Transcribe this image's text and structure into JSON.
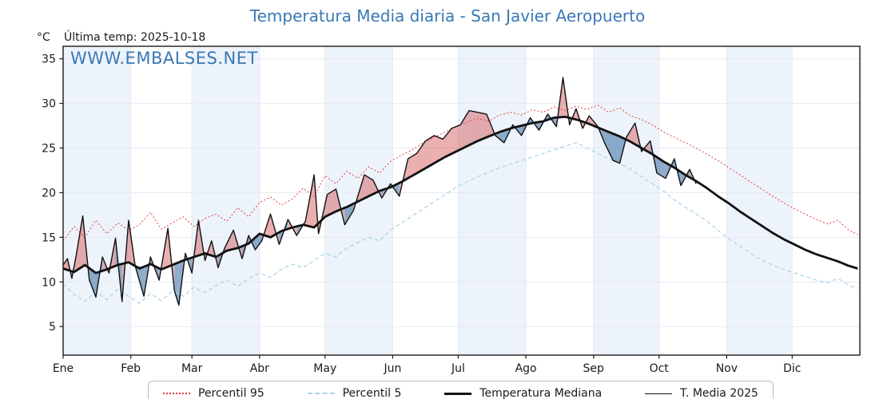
{
  "chart_data": {
    "type": "line",
    "title": "Temperatura Media diaria - San Javier Aeropuerto",
    "subtitle": "Última temp: 2025-10-18",
    "watermark": "WWW.EMBALSES.NET",
    "y_unit": "°C",
    "ylim": [
      1.8,
      36.4
    ],
    "y_ticks": [
      5,
      10,
      15,
      20,
      25,
      30,
      35
    ],
    "x_days": 365,
    "x_months": [
      {
        "label": "Ene",
        "start": 0
      },
      {
        "label": "Feb",
        "start": 31
      },
      {
        "label": "Mar",
        "start": 59
      },
      {
        "label": "Abr",
        "start": 90
      },
      {
        "label": "May",
        "start": 120
      },
      {
        "label": "Jun",
        "start": 151
      },
      {
        "label": "Jul",
        "start": 181
      },
      {
        "label": "Ago",
        "start": 212
      },
      {
        "label": "Sep",
        "start": 243
      },
      {
        "label": "Oct",
        "start": 273
      },
      {
        "label": "Nov",
        "start": 304
      },
      {
        "label": "Dic",
        "start": 334
      }
    ],
    "grid": true,
    "legend_position": "bottom",
    "colors": {
      "band": "#edf3fa",
      "grid": "#e7e9f0",
      "axis": "#1a1a1a",
      "title": "#3a78b5",
      "watermark": "#3a78b5"
    },
    "days_grid": [
      0,
      5,
      10,
      15,
      20,
      25,
      30,
      35,
      40,
      45,
      50,
      55,
      60,
      65,
      70,
      75,
      80,
      85,
      90,
      95,
      100,
      105,
      110,
      115,
      120,
      125,
      130,
      135,
      140,
      145,
      150,
      155,
      160,
      165,
      170,
      175,
      180,
      185,
      190,
      195,
      200,
      205,
      210,
      215,
      220,
      225,
      230,
      235,
      240,
      245,
      250,
      255,
      260,
      265,
      270,
      275,
      280,
      285,
      290,
      295,
      300,
      305,
      310,
      315,
      320,
      325,
      330,
      335,
      340,
      345,
      350,
      355,
      360,
      364
    ],
    "series": [
      {
        "name": "Percentil 95",
        "color": "#e53d3d",
        "line": "dotted",
        "width": 1,
        "values": [
          14.6,
          16.2,
          15.0,
          16.9,
          15.4,
          16.6,
          15.8,
          16.4,
          17.8,
          15.9,
          16.6,
          17.3,
          16.2,
          17.1,
          17.6,
          16.8,
          18.3,
          17.3,
          18.9,
          19.5,
          18.6,
          19.3,
          20.5,
          19.6,
          21.9,
          21.0,
          22.4,
          21.6,
          22.9,
          22.2,
          23.5,
          24.2,
          24.8,
          25.6,
          26.2,
          26.8,
          27.4,
          27.9,
          28.3,
          28.0,
          28.7,
          29.0,
          28.7,
          29.3,
          29.0,
          29.6,
          29.2,
          29.7,
          29.3,
          29.8,
          29.0,
          29.5,
          28.6,
          28.2,
          27.6,
          26.8,
          26.2,
          25.6,
          25.0,
          24.3,
          23.6,
          22.8,
          22.0,
          21.2,
          20.4,
          19.6,
          18.9,
          18.2,
          17.6,
          17.0,
          16.5,
          16.9,
          15.8,
          15.3
        ]
      },
      {
        "name": "Percentil 5",
        "color": "#a6d3e8",
        "line": "dashed",
        "width": 1.2,
        "values": [
          9.8,
          8.6,
          7.8,
          8.9,
          8.0,
          9.2,
          8.4,
          7.6,
          8.7,
          7.9,
          9.0,
          8.4,
          9.4,
          8.8,
          9.6,
          10.2,
          9.5,
          10.4,
          11.0,
          10.5,
          11.4,
          12.0,
          11.6,
          12.4,
          13.2,
          12.8,
          13.8,
          14.4,
          15.0,
          14.6,
          15.8,
          16.6,
          17.4,
          18.2,
          19.0,
          19.8,
          20.6,
          21.2,
          21.8,
          22.3,
          22.8,
          23.2,
          23.6,
          24.0,
          24.4,
          24.8,
          25.2,
          25.6,
          25.0,
          24.4,
          23.8,
          23.3,
          22.6,
          21.8,
          21.0,
          20.2,
          19.2,
          18.4,
          17.6,
          16.8,
          15.8,
          14.8,
          14.0,
          13.2,
          12.5,
          11.9,
          11.4,
          11.0,
          10.6,
          10.2,
          9.9,
          10.4,
          9.6,
          9.3
        ]
      },
      {
        "name": "Temperatura Mediana",
        "color": "#111111",
        "line": "solid",
        "width": 2.8,
        "values": [
          11.5,
          11.1,
          11.9,
          11.0,
          11.4,
          11.9,
          12.2,
          11.5,
          12.0,
          11.4,
          11.9,
          12.4,
          12.8,
          13.2,
          12.8,
          13.5,
          13.8,
          14.3,
          15.4,
          15.0,
          15.7,
          16.1,
          16.4,
          16.1,
          17.3,
          17.9,
          18.4,
          19.0,
          19.6,
          20.2,
          20.6,
          21.2,
          21.9,
          22.6,
          23.3,
          24.0,
          24.6,
          25.2,
          25.8,
          26.3,
          26.8,
          27.2,
          27.5,
          27.8,
          28.0,
          28.4,
          28.5,
          28.2,
          27.8,
          27.3,
          26.8,
          26.3,
          25.7,
          25.0,
          24.3,
          23.5,
          22.8,
          22.0,
          21.3,
          20.5,
          19.6,
          18.8,
          17.9,
          17.1,
          16.3,
          15.5,
          14.8,
          14.2,
          13.6,
          13.1,
          12.7,
          12.3,
          11.8,
          11.5
        ]
      },
      {
        "name": "T. Media 2025",
        "color": "#111111",
        "line": "solid",
        "width": 1.4,
        "last_date": "2025-10-18",
        "days": [
          0,
          2,
          4,
          6,
          9,
          12,
          15,
          18,
          21,
          24,
          27,
          30,
          33,
          37,
          40,
          44,
          48,
          51,
          53,
          56,
          59,
          62,
          65,
          68,
          71,
          74,
          78,
          82,
          85,
          88,
          91,
          95,
          99,
          103,
          107,
          111,
          115,
          117,
          121,
          125,
          129,
          133,
          138,
          142,
          146,
          150,
          154,
          158,
          162,
          166,
          170,
          174,
          178,
          182,
          186,
          190,
          194,
          198,
          202,
          206,
          210,
          214,
          218,
          222,
          226,
          229,
          232,
          235,
          238,
          241,
          245,
          248,
          252,
          255,
          258,
          262,
          265,
          269,
          272,
          276,
          280,
          283,
          287,
          290
        ],
        "values": [
          11.9,
          12.6,
          10.4,
          13.0,
          17.4,
          10.2,
          8.3,
          12.8,
          11.0,
          14.9,
          7.8,
          16.9,
          11.8,
          8.4,
          12.8,
          10.2,
          16.0,
          9.0,
          7.4,
          13.2,
          11.0,
          16.9,
          12.4,
          14.6,
          11.6,
          13.8,
          15.8,
          12.6,
          15.2,
          13.6,
          14.6,
          17.6,
          14.2,
          17.0,
          15.2,
          16.8,
          22.0,
          15.4,
          19.8,
          20.4,
          16.4,
          18.0,
          22.0,
          21.4,
          19.4,
          21.0,
          19.6,
          23.8,
          24.4,
          25.8,
          26.4,
          26.0,
          27.2,
          27.6,
          29.2,
          29.0,
          28.8,
          26.4,
          25.6,
          27.6,
          26.4,
          28.4,
          27.0,
          28.8,
          27.4,
          32.9,
          27.6,
          29.4,
          27.2,
          28.6,
          27.4,
          25.6,
          23.6,
          23.3,
          26.2,
          27.8,
          24.6,
          25.8,
          22.2,
          21.6,
          23.8,
          20.8,
          22.6,
          21.0
        ]
      }
    ],
    "fills": {
      "between": [
        3,
        2
      ],
      "above_color": "#d65f5f",
      "below_color": "#4a7bab",
      "above_opacity": 0.5,
      "below_opacity": 0.62
    }
  },
  "legend": {
    "items": [
      {
        "label": "Percentil 95",
        "color": "#e53d3d",
        "line": "dotted",
        "weight": "thin"
      },
      {
        "label": "Percentil 5",
        "color": "#a6d3e8",
        "line": "dashed",
        "weight": "thin"
      },
      {
        "label": "Temperatura Mediana",
        "color": "#111111",
        "line": "solid",
        "weight": "thick"
      },
      {
        "label": "T. Media 2025",
        "color": "#111111",
        "line": "solid",
        "weight": "thin"
      }
    ]
  }
}
